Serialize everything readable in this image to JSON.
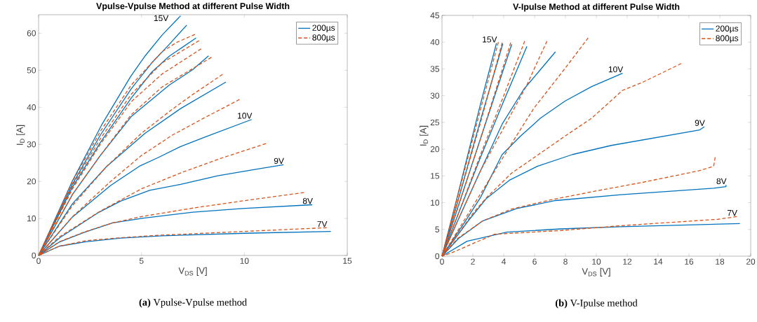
{
  "chart_data": [
    {
      "type": "line",
      "title": "Vpulse-Vpulse Method at different Pulse Width",
      "xlabel": "V$_{DS}$ [V]",
      "ylabel": "I$_{D}$ [A]",
      "xlim": [
        0,
        15
      ],
      "ylim": [
        0,
        65
      ],
      "xticks": [
        0,
        5,
        10,
        15
      ],
      "yticks": [
        0,
        10,
        20,
        30,
        40,
        50,
        60
      ],
      "grid": false,
      "legend": "top right",
      "marker": "none",
      "series": [
        {
          "name": "200µs",
          "color": "#0072bd",
          "line_style": "solid",
          "x": [
            0,
            1,
            2.3,
            4,
            6,
            10,
            14.2
          ],
          "values": [
            0,
            2.5,
            3.7,
            4.7,
            5.3,
            6.0,
            6.5
          ]
        },
        {
          "color": "#0072bd",
          "line_style": "solid",
          "x": [
            0,
            1,
            2.2,
            3.6,
            5.1,
            7.5,
            9.9,
            13.3
          ],
          "values": [
            0,
            3.6,
            6.2,
            8.8,
            10.1,
            11.7,
            12.7,
            13.7
          ]
        },
        {
          "color": "#0072bd",
          "line_style": "solid",
          "x": [
            0,
            1.06,
            2.94,
            4,
            5.4,
            6.9,
            8.7,
            10.5,
            11.9
          ],
          "values": [
            0,
            4.9,
            11.7,
            14.7,
            17.6,
            19.2,
            21.5,
            23.2,
            24.5
          ]
        },
        {
          "color": "#0072bd",
          "line_style": "solid",
          "x": [
            0,
            1.65,
            3.5,
            4.9,
            5.8,
            6.9,
            8.1,
            10.35
          ],
          "values": [
            0,
            10.4,
            18.9,
            24.1,
            26.4,
            29.4,
            32,
            36.7
          ]
        },
        {
          "color": "#0072bd",
          "line_style": "solid",
          "x": [
            0,
            1.65,
            3.3,
            5.18,
            6.94,
            9.1
          ],
          "values": [
            0,
            14,
            24,
            33,
            39.8,
            46.8
          ]
        },
        {
          "color": "#0072bd",
          "line_style": "solid",
          "x": [
            0,
            1.65,
            3,
            4.5,
            6.35,
            7.5,
            8.26
          ],
          "values": [
            0,
            16.5,
            27,
            37.5,
            46,
            50.2,
            53.9
          ]
        },
        {
          "color": "#0072bd",
          "line_style": "solid",
          "x": [
            0,
            1.65,
            3,
            4.5,
            5.5,
            6.35,
            7.65
          ],
          "values": [
            0,
            18.5,
            30.5,
            42.5,
            49.5,
            53.8,
            58.7
          ]
        },
        {
          "color": "#0072bd",
          "line_style": "solid",
          "x": [
            0,
            1.65,
            3,
            4.5,
            5.5,
            6.35,
            7.2
          ],
          "values": [
            0,
            19.3,
            32.5,
            45,
            52,
            57,
            62.2
          ]
        },
        {
          "color": "#0072bd",
          "line_style": "solid",
          "x": [
            0,
            1.65,
            3.06,
            4.47,
            5.18,
            6,
            6.9
          ],
          "values": [
            0,
            20.2,
            35.2,
            48.3,
            53.9,
            59.5,
            64.7
          ]
        },
        {
          "name": "800µs",
          "color": "#d95319",
          "line_style": "dashed",
          "x": [
            0,
            1,
            2.3,
            4,
            6,
            10,
            14
          ],
          "values": [
            0,
            2.5,
            4.0,
            4.8,
            5.5,
            6.5,
            7.5
          ]
        },
        {
          "color": "#d95319",
          "line_style": "dashed",
          "x": [
            0,
            1,
            2.3,
            3.6,
            5,
            7.5,
            10,
            12.9
          ],
          "values": [
            0,
            3.7,
            6.5,
            8.8,
            10.5,
            12.8,
            14.8,
            17
          ]
        },
        {
          "color": "#d95319",
          "line_style": "dashed",
          "x": [
            0,
            1,
            3,
            5,
            7,
            9,
            11.05
          ],
          "values": [
            0,
            5,
            12,
            18,
            22.5,
            26.5,
            30.2
          ]
        },
        {
          "color": "#d95319",
          "line_style": "dashed",
          "x": [
            0,
            1.65,
            3.5,
            5,
            6.5,
            8,
            9.76
          ],
          "values": [
            0,
            10.5,
            20,
            27,
            32.5,
            37,
            42.1
          ]
        },
        {
          "color": "#d95319",
          "line_style": "dashed",
          "x": [
            0,
            1.65,
            3.3,
            5,
            6.5,
            7.5,
            8.94
          ],
          "values": [
            0,
            13.5,
            24,
            33,
            39.5,
            43.5,
            48.9
          ]
        },
        {
          "color": "#d95319",
          "line_style": "dashed",
          "x": [
            0,
            1.65,
            3,
            4.5,
            6,
            7.5,
            8.4
          ],
          "values": [
            0,
            16.5,
            27,
            38,
            45.5,
            50.5,
            53.5
          ]
        },
        {
          "color": "#d95319",
          "line_style": "dashed",
          "x": [
            0,
            1.65,
            3,
            4.5,
            6,
            7.9
          ],
          "values": [
            0,
            18,
            30,
            41.5,
            49,
            55.8
          ]
        },
        {
          "color": "#d95319",
          "line_style": "dashed",
          "x": [
            0,
            1.65,
            3,
            4.5,
            6,
            7.8
          ],
          "values": [
            0,
            19,
            31.5,
            43.5,
            52,
            58
          ]
        },
        {
          "color": "#d95319",
          "line_style": "dashed",
          "x": [
            0,
            1.65,
            3,
            4.5,
            6,
            6.7,
            7.6
          ],
          "values": [
            0,
            20,
            33.5,
            46,
            55,
            57.5,
            59.7
          ]
        }
      ],
      "annotations": [
        {
          "text": "15V",
          "x": 6.9,
          "y": 64.7
        },
        {
          "text": "10V",
          "x": 10.35,
          "y": 36.7
        },
        {
          "text": "9V",
          "x": 11.9,
          "y": 24.5
        },
        {
          "text": "8V",
          "x": 13.3,
          "y": 13.7
        },
        {
          "text": "7V",
          "x": 14,
          "y": 7.5
        },
        "**(a)** Vpulse-Vpulse method"
      ]
    },
    {
      "type": "line",
      "title": "V-Ipulse Method at different Pulse Width",
      "xlabel": "V$_{DS}$ [V]",
      "ylabel": "I$_{D}$ [A]",
      "xlim": [
        0,
        20
      ],
      "ylim": [
        0,
        45
      ],
      "xticks": [
        0,
        2,
        4,
        6,
        8,
        10,
        12,
        14,
        16,
        18,
        20
      ],
      "yticks": [
        0,
        5,
        10,
        15,
        20,
        25,
        30,
        35,
        40,
        45
      ],
      "grid": false,
      "legend": "top right",
      "marker": "none",
      "series": [
        {
          "name": "200µs",
          "color": "#0072bd",
          "line_style": "solid",
          "x": [
            0,
            1.62,
            4.2,
            7.7,
            11.6,
            19.3
          ],
          "values": [
            0,
            2.8,
            4.5,
            5.1,
            5.5,
            6.1
          ]
        },
        {
          "color": "#0072bd",
          "line_style": "solid",
          "x": [
            0,
            1.07,
            2.64,
            4.84,
            7.35,
            11.6,
            17.6,
            18.4,
            18.4
          ],
          "values": [
            0,
            3.3,
            6.6,
            8.9,
            10.4,
            11.5,
            12.7,
            13,
            13.3
          ]
        },
        {
          "color": "#0072bd",
          "line_style": "solid",
          "x": [
            0,
            1.7,
            2.88,
            4.37,
            6.17,
            8.45,
            10.97,
            16.7,
            17
          ],
          "values": [
            0,
            6.6,
            10.8,
            14.2,
            16.8,
            19,
            20.7,
            23.6,
            24.2
          ]
        },
        {
          "color": "#0072bd",
          "line_style": "solid",
          "x": [
            0,
            1.5,
            2.5,
            3.9,
            5.07,
            6.38,
            7.98,
            9.7,
            11.7
          ],
          "values": [
            0,
            6.5,
            11,
            19,
            22.4,
            25.8,
            29,
            31.7,
            34.2
          ]
        },
        {
          "color": "#0072bd",
          "line_style": "solid",
          "x": [
            0,
            1,
            2.5,
            3.9,
            5.3,
            6.33,
            7.35
          ],
          "values": [
            0,
            6.5,
            16,
            24.7,
            31.2,
            34.7,
            38.2
          ]
        },
        {
          "color": "#0072bd",
          "line_style": "solid",
          "x": [
            0,
            1,
            2.5,
            4,
            5.5
          ],
          "values": [
            0,
            7.5,
            18.5,
            29,
            39.2
          ]
        },
        {
          "color": "#0072bd",
          "line_style": "solid",
          "x": [
            0,
            1,
            2.5,
            4.52
          ],
          "values": [
            0,
            8.9,
            22,
            39.6
          ]
        },
        {
          "color": "#0072bd",
          "line_style": "solid",
          "x": [
            0,
            1,
            2.5,
            3.94
          ],
          "values": [
            0,
            10,
            25.5,
            39.7
          ]
        },
        {
          "color": "#0072bd",
          "line_style": "solid",
          "x": [
            0,
            1,
            2.5,
            3.53
          ],
          "values": [
            0,
            11.2,
            28.5,
            39.8
          ]
        },
        {
          "name": "800µs",
          "color": "#d95319",
          "line_style": "dashed",
          "x": [
            0,
            0.6,
            3.4,
            7.7,
            11.6,
            17.9,
            19.1
          ],
          "values": [
            0,
            0.6,
            4.1,
            4.8,
            5.7,
            6.9,
            7.4
          ]
        },
        {
          "color": "#d95319",
          "line_style": "dashed",
          "x": [
            0,
            1,
            2.64,
            4.5,
            7,
            10,
            13,
            16.7,
            17.6,
            17.7
          ],
          "values": [
            0,
            3.3,
            6.6,
            8.8,
            10.5,
            12.2,
            13.8,
            16,
            16.8,
            18.5
          ]
        },
        {
          "color": "#d95319",
          "line_style": "dashed",
          "x": [
            0,
            2,
            2.9,
            4.5,
            6,
            8,
            9.7,
            11.7,
            13,
            15.5
          ],
          "values": [
            0,
            8,
            11,
            15.5,
            18.5,
            22.5,
            25.8,
            31,
            32.5,
            36
          ]
        },
        {
          "color": "#d95319",
          "line_style": "dashed",
          "x": [
            0,
            1.5,
            3,
            4.5,
            5.94,
            8,
            9.47
          ],
          "values": [
            0,
            7,
            14,
            21,
            27.6,
            35.2,
            40.8
          ]
        },
        {
          "color": "#d95319",
          "line_style": "dashed",
          "x": [
            0,
            1,
            2.5,
            4,
            5.5,
            6.8
          ],
          "values": [
            0,
            6.5,
            16,
            24,
            32,
            40.2
          ]
        },
        {
          "color": "#d95319",
          "line_style": "dashed",
          "x": [
            0,
            1,
            2.5,
            4,
            5.36
          ],
          "values": [
            0,
            7.5,
            19,
            30,
            40.2
          ]
        },
        {
          "color": "#d95319",
          "line_style": "dashed",
          "x": [
            0,
            1,
            2.5,
            4.45
          ],
          "values": [
            0,
            8.8,
            22,
            39.9
          ]
        },
        {
          "color": "#d95319",
          "line_style": "dashed",
          "x": [
            0,
            1,
            2.5,
            3.9
          ],
          "values": [
            0,
            10,
            25,
            39.9
          ]
        },
        {
          "color": "#d95319",
          "line_style": "dashed",
          "x": [
            0,
            1,
            2.5,
            3.65
          ],
          "values": [
            0,
            11,
            27.5,
            40
          ]
        }
      ],
      "annotations": [
        {
          "text": "15V",
          "x": 3.53,
          "y": 39.8
        },
        {
          "text": "10V",
          "x": 11.7,
          "y": 34.2
        },
        {
          "text": "9V",
          "x": 17,
          "y": 24.2
        },
        {
          "text": "8V",
          "x": 18.4,
          "y": 13.3
        },
        {
          "text": "7V",
          "x": 19.1,
          "y": 7.4
        },
        "**(b)** V-Ipulse method"
      ]
    }
  ]
}
